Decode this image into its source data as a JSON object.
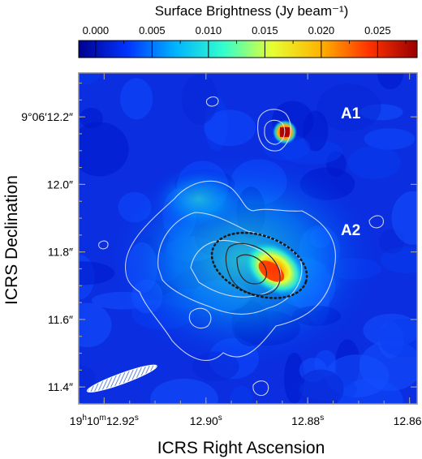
{
  "chart_data": {
    "type": "heatmap",
    "title": "Surface Brightness (Jy beam$^{-1}$)",
    "colorbar": {
      "label": "Surface Brightness (Jy beam⁻¹)",
      "ticks": [
        "0.000",
        "0.005",
        "0.010",
        "0.015",
        "0.020",
        "0.025"
      ],
      "tick_values": [
        0.0,
        0.005,
        0.01,
        0.015,
        0.02,
        0.025
      ],
      "range": [
        -0.0015,
        0.0285
      ],
      "colormap": [
        "#00008f",
        "#0033ff",
        "#00b4ff",
        "#33ffcc",
        "#e6ff33",
        "#ffb400",
        "#ff3300",
        "#990000"
      ]
    },
    "xlabel": "ICRS Right Ascension",
    "ylabel": "ICRS Declination",
    "x_ticks": [
      {
        "value": 12.92,
        "label": "12.92",
        "prefix": "19h10m",
        "suffix": "s"
      },
      {
        "value": 12.9,
        "label": "12.90",
        "suffix": "s"
      },
      {
        "value": 12.88,
        "label": "12.88",
        "suffix": "s"
      },
      {
        "value": 12.86,
        "label": "12.86",
        "suffix": "s"
      }
    ],
    "y_ticks": [
      {
        "value": 12.2,
        "label": "9°06′12.2″"
      },
      {
        "value": 12.0,
        "label": "12.0″"
      },
      {
        "value": 11.8,
        "label": "11.8″"
      },
      {
        "value": 11.6,
        "label": "11.6″"
      },
      {
        "value": 11.4,
        "label": "11.4″"
      }
    ],
    "xlim": [
      12.925,
      12.8585
    ],
    "ylim": [
      11.35,
      12.33
    ],
    "sources": [
      {
        "name": "A1",
        "ra": 12.8845,
        "dec": 12.155,
        "label_ra": 12.8735,
        "label_dec": 12.195,
        "peak": 0.026,
        "sigma": 0.0011
      },
      {
        "name": "A2",
        "ra": 12.8865,
        "dec": 11.75,
        "label_ra": 12.8735,
        "label_dec": 11.85,
        "peak": 0.02,
        "sigma": 0.0022
      }
    ],
    "ellipse": {
      "ra": 12.8895,
      "dec": 11.76,
      "semi_major_ra": 0.0097,
      "semi_minor_dec": 0.088,
      "style": "dotted"
    },
    "beam": {
      "ra": 12.9165,
      "dec": 11.425,
      "major_ra": 0.0014,
      "minor_dec": 0.016,
      "angle": -20
    },
    "grid": false
  }
}
